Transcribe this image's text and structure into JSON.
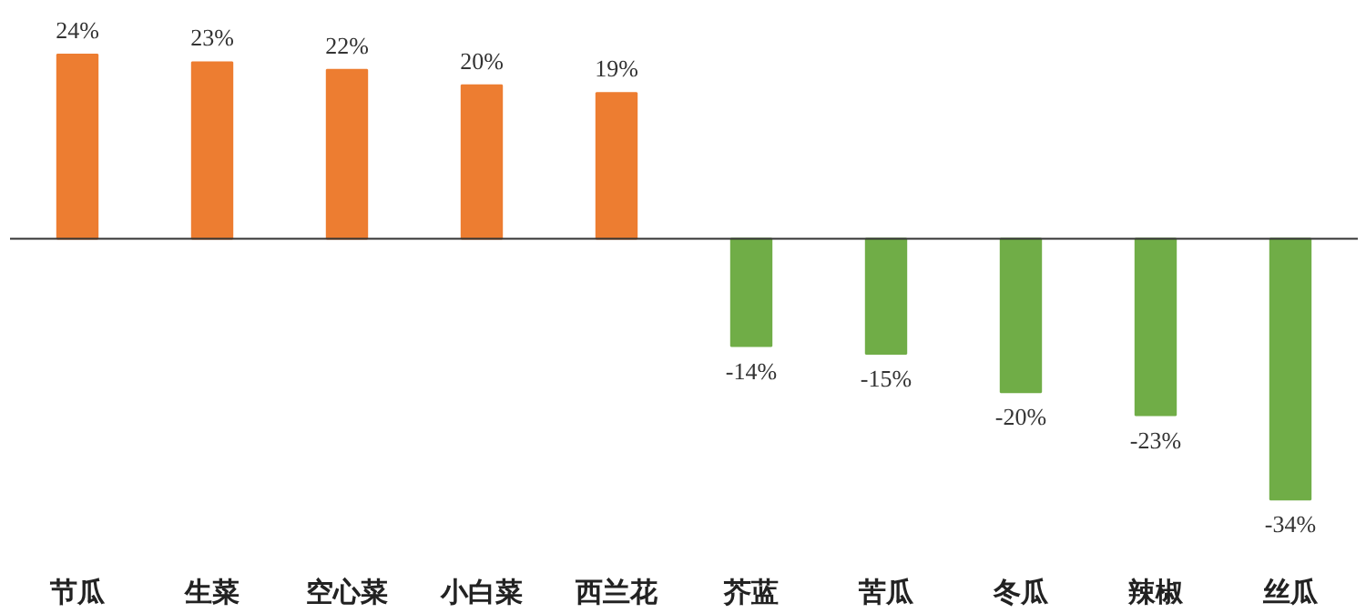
{
  "chart_data": {
    "type": "bar",
    "categories": [
      "节瓜",
      "生菜",
      "空心菜",
      "小白菜",
      "西兰花",
      "芥蓝",
      "苦瓜",
      "冬瓜",
      "辣椒",
      "丝瓜"
    ],
    "values": [
      24,
      23,
      22,
      20,
      19,
      -14,
      -15,
      -20,
      -23,
      -34
    ],
    "colors": [
      "#ed7d31",
      "#ed7d31",
      "#ed7d31",
      "#ed7d31",
      "#ed7d31",
      "#70ad47",
      "#70ad47",
      "#70ad47",
      "#70ad47",
      "#70ad47"
    ],
    "value_labels": [
      "24%",
      "23%",
      "22%",
      "20%",
      "19%",
      "-14%",
      "-15%",
      "-20%",
      "-23%",
      "-34%"
    ]
  }
}
